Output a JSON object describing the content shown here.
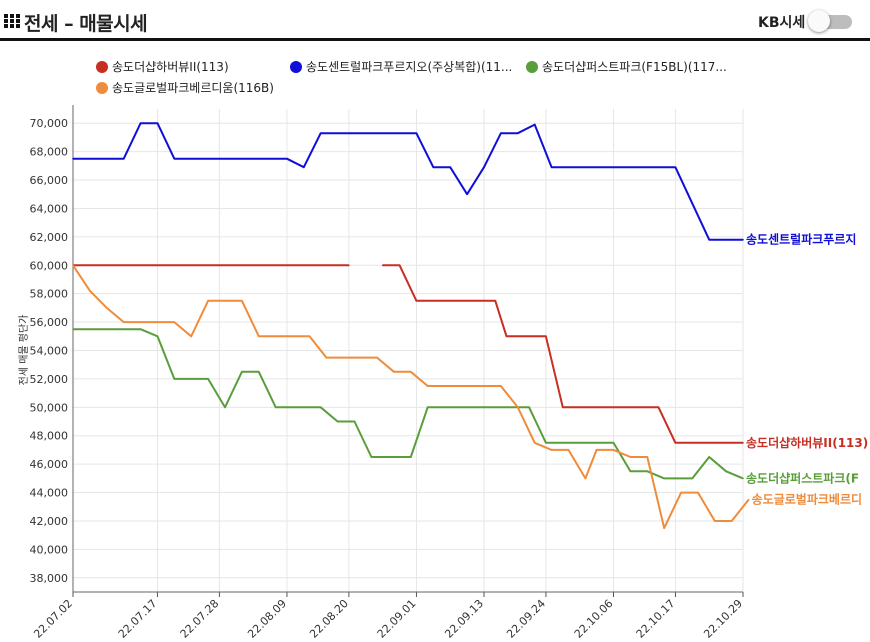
{
  "header": {
    "title": "전세 – 매물시세",
    "kb_label": "KB시세",
    "grid_icon": "grid-icon",
    "toggle_state": "off"
  },
  "chart_data": {
    "type": "line",
    "ylabel": "전세 매물 평단가",
    "ylim": [
      37000,
      71000
    ],
    "y_ticks": [
      38000,
      40000,
      42000,
      44000,
      46000,
      48000,
      50000,
      52000,
      54000,
      56000,
      58000,
      60000,
      62000,
      64000,
      66000,
      68000,
      70000
    ],
    "y_tick_labels": [
      "38,000",
      "40,000",
      "42,000",
      "44,000",
      "46,000",
      "48,000",
      "50,000",
      "52,000",
      "54,000",
      "56,000",
      "58,000",
      "60,000",
      "62,000",
      "64,000",
      "66,000",
      "68,000",
      "70,000"
    ],
    "x_start": "22.07.02",
    "x_end": "22.10.29",
    "x_ticks": [
      "22.07.02",
      "22.07.17",
      "22.07.28",
      "22.08.09",
      "22.08.20",
      "22.09.01",
      "22.09.13",
      "22.09.24",
      "22.10.06",
      "22.10.17",
      "22.10.29"
    ],
    "grid": true,
    "legend_position": "top",
    "series": [
      {
        "name": "송도더샵하버뷰II(113)",
        "end_label": "송도더샵하버뷰II(113)",
        "color": "#c62f22",
        "points": [
          [
            "22.07.02",
            60000
          ],
          [
            "22.08.20",
            60000
          ],
          null,
          [
            "22.08.26",
            60000
          ],
          [
            "22.08.29",
            60000
          ],
          [
            "22.09.01",
            57500
          ],
          [
            "22.09.15",
            57500
          ],
          [
            "22.09.17",
            55000
          ],
          [
            "22.09.24",
            55000
          ],
          [
            "22.09.27",
            50000
          ],
          [
            "22.10.14",
            50000
          ],
          [
            "22.10.17",
            47500
          ],
          [
            "22.10.29",
            47500
          ]
        ]
      },
      {
        "name": "송도센트럴파크푸르지오(주상복합)(11...",
        "end_label": "송도센트럴파크푸르지",
        "color": "#0f0fd8",
        "points": [
          [
            "22.07.02",
            67500
          ],
          [
            "22.07.11",
            67500
          ],
          [
            "22.07.14",
            70000
          ],
          [
            "22.07.17",
            70000
          ],
          [
            "22.07.20",
            67500
          ],
          [
            "22.08.09",
            67500
          ],
          [
            "22.08.12",
            66900
          ],
          [
            "22.08.15",
            69300
          ],
          [
            "22.09.01",
            69300
          ],
          [
            "22.09.04",
            66900
          ],
          [
            "22.09.07",
            66900
          ],
          [
            "22.09.10",
            65000
          ],
          [
            "22.09.13",
            66900
          ],
          [
            "22.09.16",
            69300
          ],
          [
            "22.09.19",
            69300
          ],
          [
            "22.09.22",
            69900
          ],
          [
            "22.09.25",
            66900
          ],
          [
            "22.10.17",
            66900
          ],
          [
            "22.10.23",
            61800
          ],
          [
            "22.10.29",
            61800
          ]
        ]
      },
      {
        "name": "송도더샵퍼스트파크(F15BL)(117...",
        "end_label": "송도더샵퍼스트파크(F",
        "color": "#5a9e3c",
        "points": [
          [
            "22.07.02",
            55500
          ],
          [
            "22.07.14",
            55500
          ],
          [
            "22.07.17",
            55000
          ],
          [
            "22.07.20",
            52000
          ],
          [
            "22.07.26",
            52000
          ],
          [
            "22.07.29",
            50000
          ],
          [
            "22.08.01",
            52500
          ],
          [
            "22.08.04",
            52500
          ],
          [
            "22.08.07",
            50000
          ],
          [
            "22.08.15",
            50000
          ],
          [
            "22.08.18",
            49000
          ],
          [
            "22.08.21",
            49000
          ],
          [
            "22.08.24",
            46500
          ],
          [
            "22.08.31",
            46500
          ],
          [
            "22.09.03",
            50000
          ],
          [
            "22.09.21",
            50000
          ],
          [
            "22.09.24",
            47500
          ],
          [
            "22.10.06",
            47500
          ],
          [
            "22.10.09",
            45500
          ],
          [
            "22.10.12",
            45500
          ],
          [
            "22.10.15",
            45000
          ],
          [
            "22.10.20",
            45000
          ],
          [
            "22.10.23",
            46500
          ],
          [
            "22.10.26",
            45500
          ],
          [
            "22.10.29",
            45000
          ]
        ]
      },
      {
        "name": "송도글로벌파크베르디움(116B)",
        "end_label": "송도글로벌파크베르디",
        "color": "#ef8c3c",
        "points": [
          [
            "22.07.02",
            60000
          ],
          [
            "22.07.05",
            58200
          ],
          [
            "22.07.08",
            57000
          ],
          [
            "22.07.11",
            56000
          ],
          [
            "22.07.20",
            56000
          ],
          [
            "22.07.23",
            55000
          ],
          [
            "22.07.26",
            57500
          ],
          [
            "22.08.01",
            57500
          ],
          [
            "22.08.04",
            55000
          ],
          [
            "22.08.13",
            55000
          ],
          [
            "22.08.16",
            53500
          ],
          [
            "22.08.25",
            53500
          ],
          [
            "22.08.28",
            52500
          ],
          [
            "22.08.31",
            52500
          ],
          [
            "22.09.03",
            51500
          ],
          [
            "22.09.16",
            51500
          ],
          [
            "22.09.19",
            50000
          ],
          [
            "22.09.22",
            47500
          ],
          [
            "22.09.25",
            47000
          ],
          [
            "22.09.28",
            47000
          ],
          [
            "22.10.01",
            45000
          ],
          [
            "22.10.03",
            47000
          ],
          [
            "22.10.06",
            47000
          ],
          [
            "22.10.09",
            46500
          ],
          [
            "22.10.12",
            46500
          ],
          [
            "22.10.15",
            41500
          ],
          [
            "22.10.18",
            44000
          ],
          [
            "22.10.21",
            44000
          ],
          [
            "22.10.24",
            42000
          ],
          [
            "22.10.27",
            42000
          ],
          [
            "22.10.30",
            43500
          ]
        ]
      }
    ]
  }
}
